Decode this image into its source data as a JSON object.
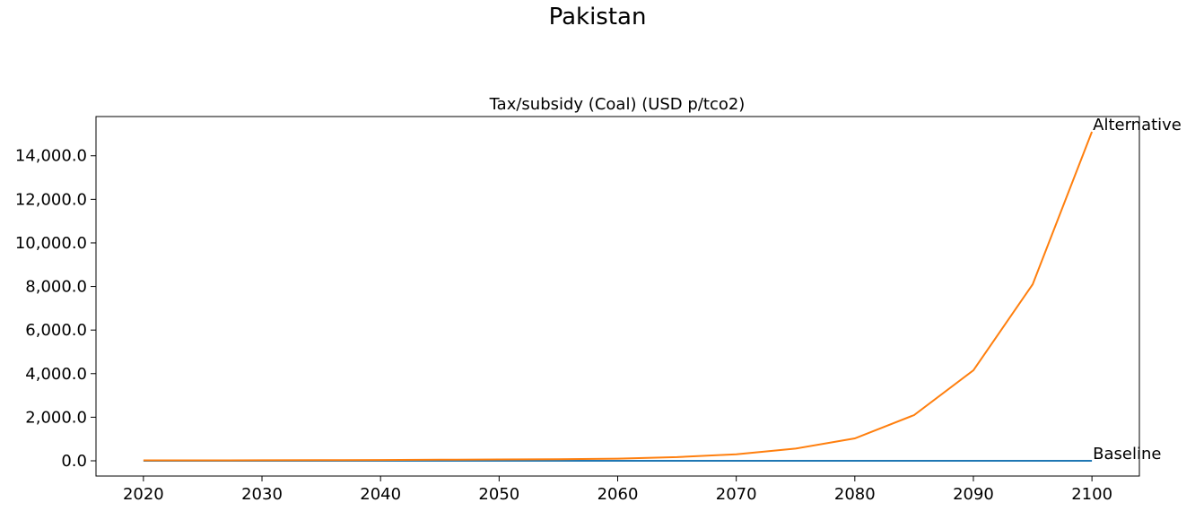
{
  "figure": {
    "suptitle": "Pakistan"
  },
  "chart_data": {
    "type": "line",
    "title": "Tax/subsidy (Coal) (USD p/tco2)",
    "xlabel": "",
    "ylabel": "",
    "xlim": [
      2016,
      2104
    ],
    "ylim": [
      -700,
      15800
    ],
    "x_ticks": [
      2020,
      2030,
      2040,
      2050,
      2060,
      2070,
      2080,
      2090,
      2100
    ],
    "y_ticks": [
      0,
      2000,
      4000,
      6000,
      8000,
      10000,
      12000,
      14000
    ],
    "y_tick_labels": [
      "0.0",
      "2,000.0",
      "4,000.0",
      "6,000.0",
      "8,000.0",
      "10,000.0",
      "12,000.0",
      "14,000.0"
    ],
    "x": [
      2020,
      2025,
      2030,
      2035,
      2040,
      2045,
      2050,
      2055,
      2060,
      2065,
      2070,
      2075,
      2080,
      2085,
      2090,
      2095,
      2100
    ],
    "series": [
      {
        "name": "Baseline",
        "color": "#1f77b4",
        "values": [
          0,
          0,
          0,
          0,
          0,
          0,
          0,
          0,
          0,
          0,
          0,
          0,
          0,
          0,
          0,
          0,
          0
        ]
      },
      {
        "name": "Alternative",
        "color": "#ff7f0e",
        "values": [
          20,
          22,
          25,
          30,
          38,
          50,
          60,
          70,
          100,
          170,
          300,
          560,
          1030,
          2100,
          4150,
          8100,
          15100
        ]
      }
    ],
    "grid": false,
    "legend": "none; series names printed at line ends"
  }
}
